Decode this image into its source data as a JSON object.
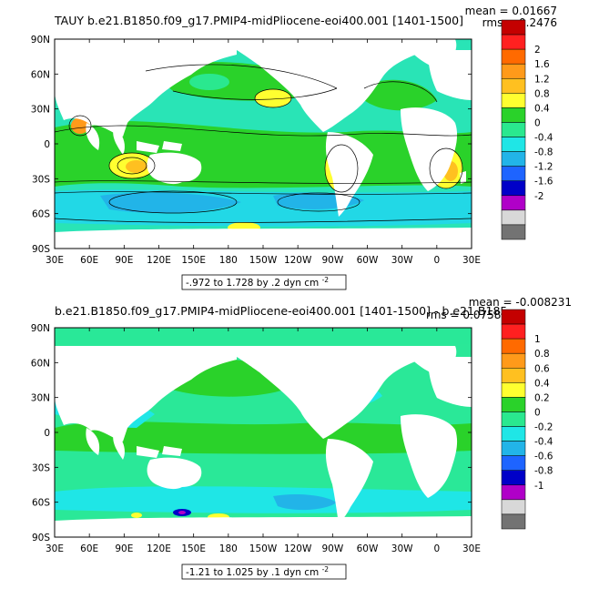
{
  "panels": [
    {
      "title": "TAUY  b.e21.B1850.f09_g17.PMIP4-midPliocene-eoi400.001  [1401-1500]",
      "mean_line": "mean = 0.01667",
      "rms_line": "rms = 0.2476",
      "range_label": "-.972 to 1.728 by .2 dyn cm",
      "range_exponent": "-2",
      "colorbar_labels": [
        "2",
        "1.6",
        "1.2",
        "0.8",
        "0.4",
        "0",
        "-0.4",
        "-0.8",
        "-1.2",
        "-1.6",
        "-2"
      ]
    },
    {
      "title": "b.e21.B1850.f09_g17.PMIP4-midPliocene-eoi400.001  [1401-1500] - b.e21.B185",
      "mean_line": "mean = -0.008231",
      "rms_line": "rms = 0.07588",
      "range_label": "-1.21 to 1.025 by .1 dyn cm",
      "range_exponent": "-2",
      "colorbar_labels": [
        "1",
        "0.8",
        "0.6",
        "0.4",
        "0.2",
        "0",
        "-0.2",
        "-0.4",
        "-0.6",
        "-0.8",
        "-1"
      ]
    }
  ],
  "lat_labels": [
    "90N",
    "60N",
    "30N",
    "0",
    "30S",
    "60S",
    "90S"
  ],
  "lon_labels": [
    "30E",
    "60E",
    "90E",
    "120E",
    "150E",
    "180",
    "150W",
    "120W",
    "90W",
    "60W",
    "30W",
    "0",
    "30E"
  ],
  "colorbar_colors": [
    "#c40000",
    "#ff2020",
    "#ff6a00",
    "#ff9a1a",
    "#ffc020",
    "#ffff30",
    "#2ad22a",
    "#2ae88f",
    "#1fe6e6",
    "#22b4e8",
    "#1e64ff",
    "#0000c8",
    "#b000c8",
    "#d8d8d8",
    "#737373"
  ],
  "colors": {
    "ocean_base_top": "#1fe6c4",
    "ocean_base_bottom": "#2ae890",
    "land": "#ffffff"
  }
}
